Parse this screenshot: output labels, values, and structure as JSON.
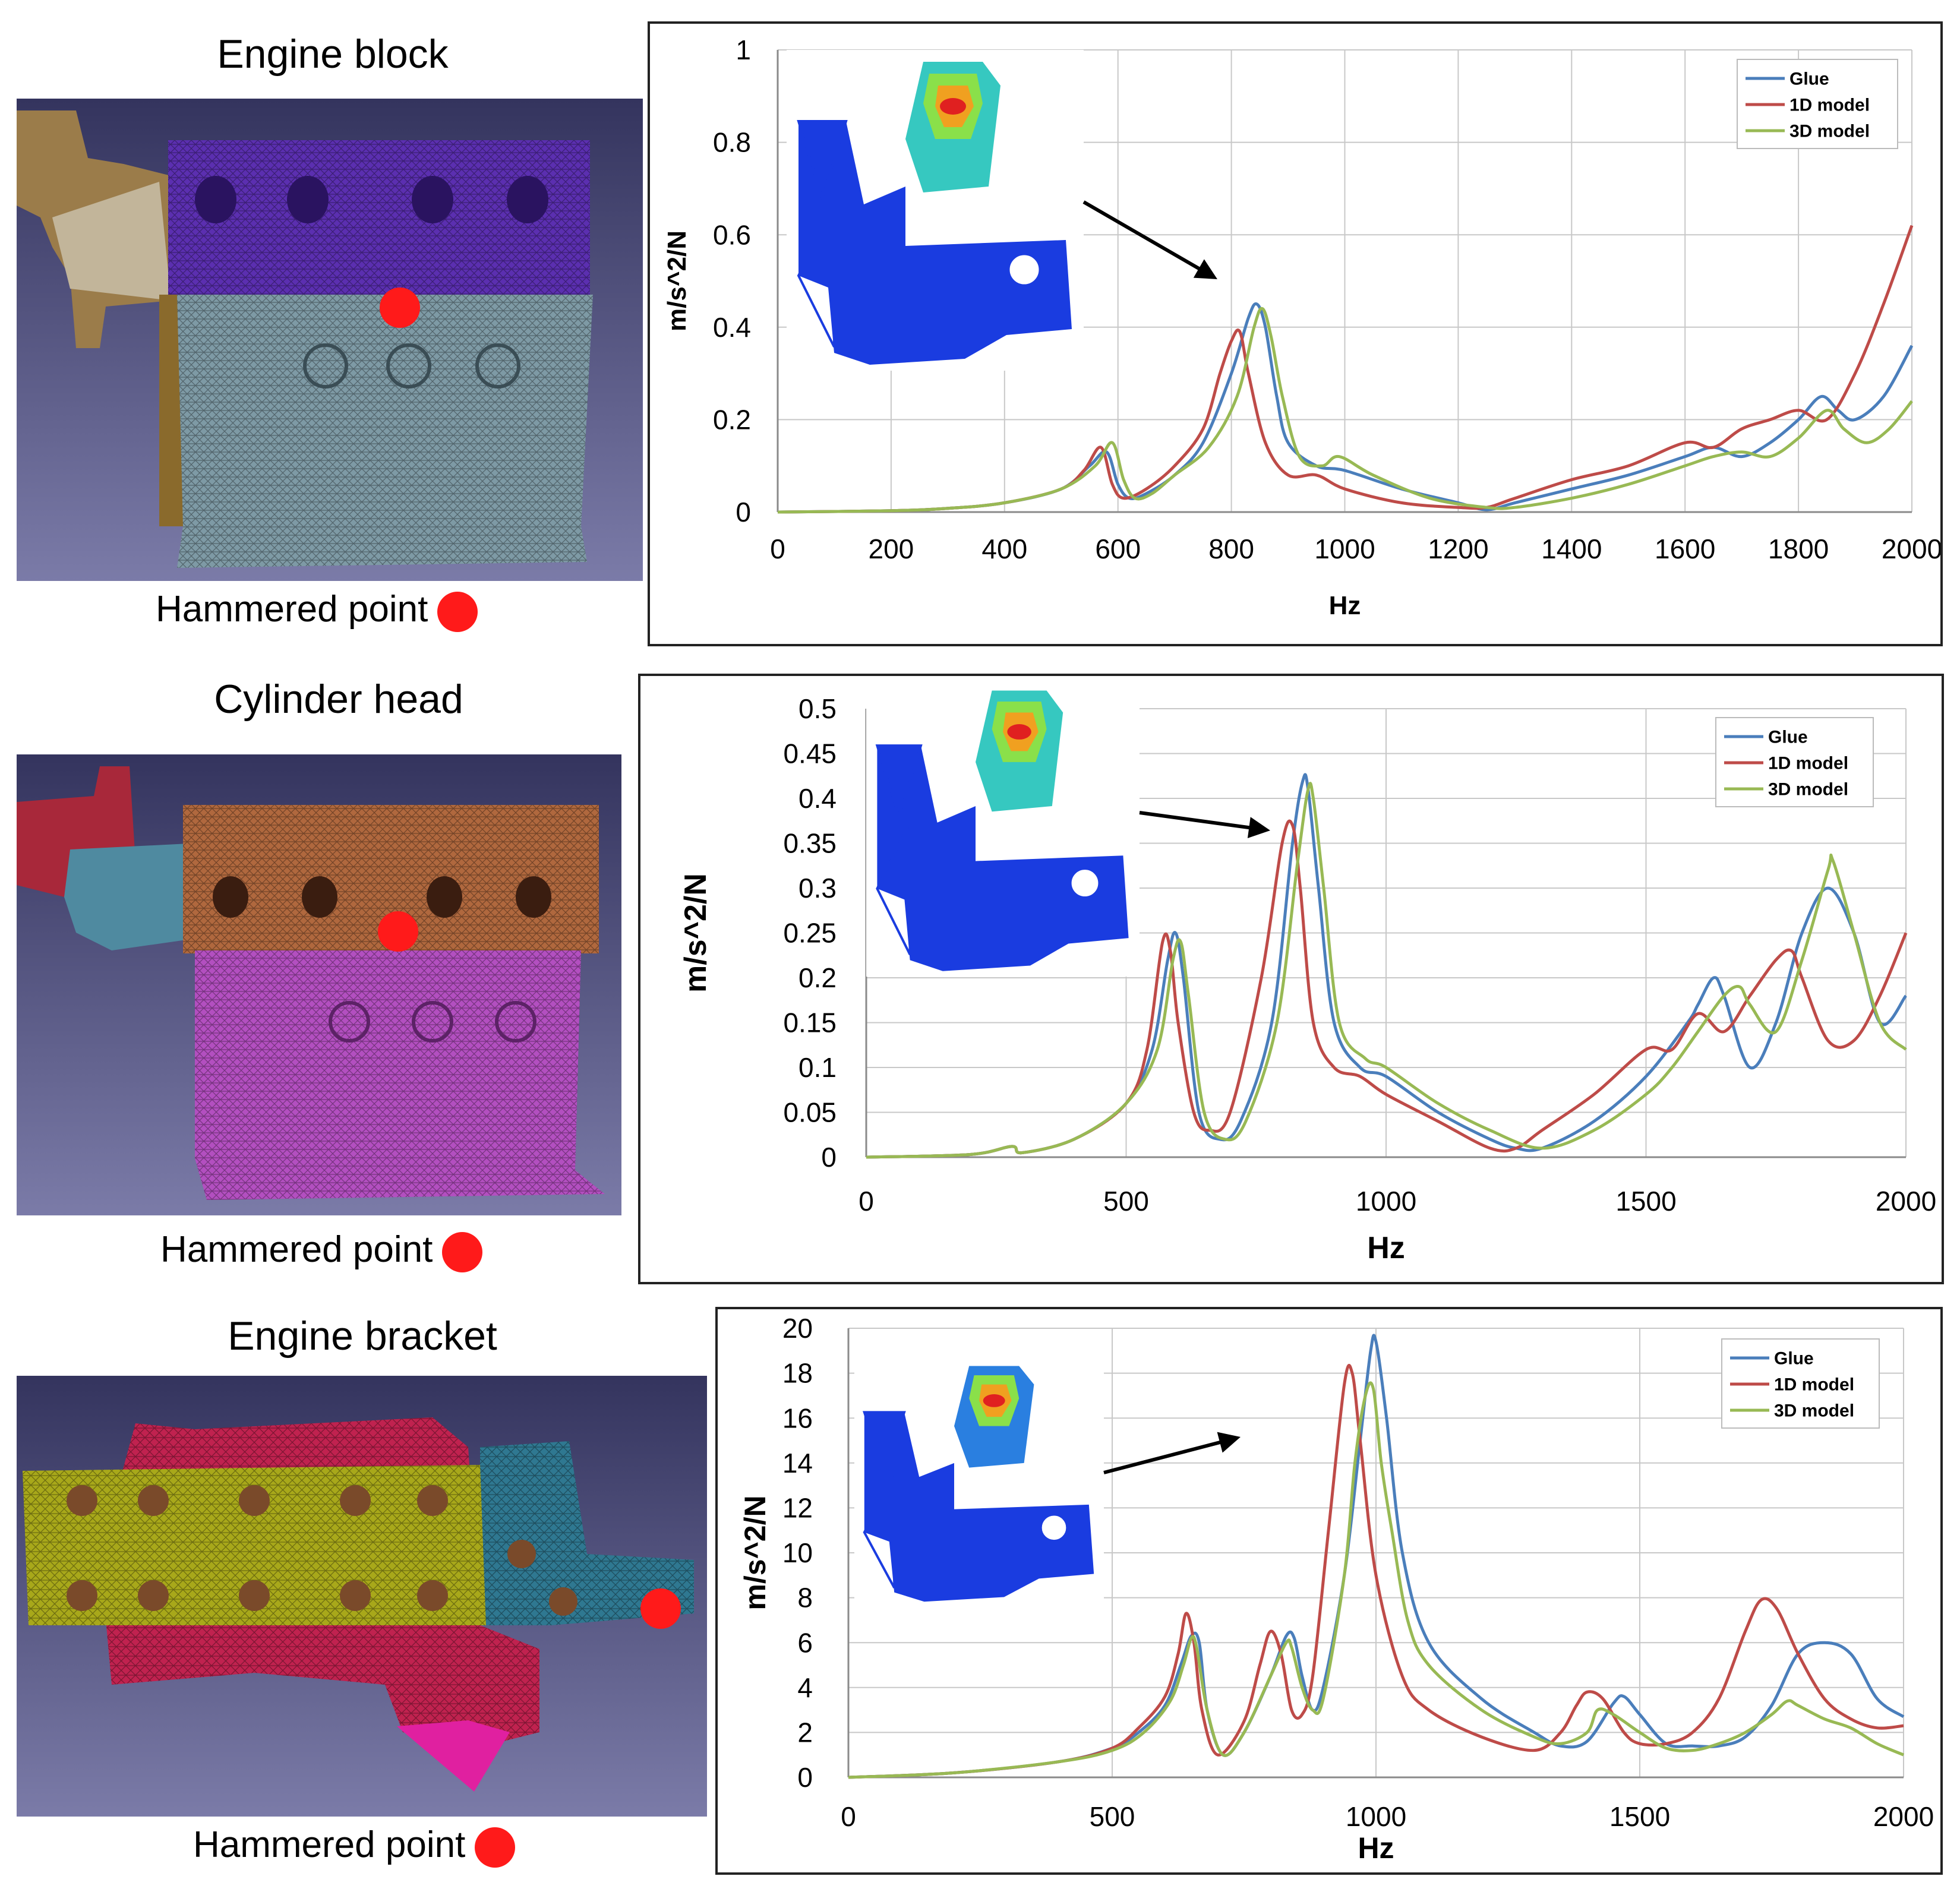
{
  "rows": [
    {
      "title": "Engine block",
      "caption": "Hammered point"
    },
    {
      "title": "Cylinder head",
      "caption": "Hammered point"
    },
    {
      "title": "Engine bracket",
      "caption": "Hammered point"
    }
  ],
  "icons": {
    "hammer_marker": "red-dot-icon",
    "mesh": "fe-mesh-render-icon",
    "mode_shape": "mode-shape-inset-icon"
  },
  "colors": {
    "glue": "#4a7ebb",
    "model_1d": "#be4b48",
    "model_3d": "#98b954",
    "hammer": "#ff1a1a",
    "bg_dark": "#34345e",
    "bg_light": "#7b7ba8"
  },
  "chart_data": [
    {
      "type": "line",
      "title": "",
      "xlabel": "Hz",
      "ylabel": "m/s^2/N",
      "xlim": [
        0,
        2000
      ],
      "ylim": [
        0,
        1
      ],
      "xticks": [
        0,
        200,
        400,
        600,
        800,
        1000,
        1200,
        1400,
        1600,
        1800,
        2000
      ],
      "xtick_labels": [
        "0",
        "200",
        "400",
        "600",
        "800",
        "1000",
        "1200",
        "1400",
        "1600",
        "1800",
        "2000"
      ],
      "yticks": [
        0,
        0.2,
        0.4,
        0.6,
        0.8,
        1
      ],
      "ytick_labels": [
        "0",
        "0.2",
        "0.4",
        "0.6",
        "0.8",
        "1"
      ],
      "legend_position": "top-right",
      "series": [
        {
          "name": "Glue",
          "color": "#4a7ebb",
          "x": [
            0,
            200,
            300,
            400,
            500,
            550,
            580,
            600,
            620,
            650,
            700,
            750,
            800,
            830,
            845,
            860,
            880,
            900,
            950,
            1000,
            1100,
            1200,
            1250,
            1300,
            1400,
            1500,
            1600,
            1650,
            1700,
            1750,
            1800,
            1840,
            1870,
            1900,
            1950,
            2000
          ],
          "y": [
            0,
            0.003,
            0.008,
            0.02,
            0.05,
            0.1,
            0.13,
            0.06,
            0.03,
            0.04,
            0.08,
            0.15,
            0.3,
            0.42,
            0.45,
            0.4,
            0.25,
            0.15,
            0.1,
            0.09,
            0.05,
            0.02,
            0.005,
            0.02,
            0.05,
            0.08,
            0.12,
            0.14,
            0.12,
            0.15,
            0.2,
            0.25,
            0.22,
            0.2,
            0.25,
            0.36
          ]
        },
        {
          "name": "1D model",
          "color": "#be4b48",
          "x": [
            0,
            200,
            300,
            400,
            500,
            540,
            570,
            590,
            610,
            650,
            700,
            750,
            780,
            800,
            815,
            830,
            860,
            900,
            950,
            1000,
            1100,
            1200,
            1250,
            1300,
            1400,
            1500,
            1600,
            1650,
            1700,
            1750,
            1800,
            1850,
            1900,
            1950,
            2000
          ],
          "y": [
            0,
            0.003,
            0.008,
            0.02,
            0.05,
            0.09,
            0.14,
            0.06,
            0.03,
            0.05,
            0.1,
            0.18,
            0.3,
            0.37,
            0.39,
            0.3,
            0.15,
            0.08,
            0.08,
            0.05,
            0.02,
            0.01,
            0.01,
            0.03,
            0.07,
            0.1,
            0.15,
            0.14,
            0.18,
            0.2,
            0.22,
            0.2,
            0.3,
            0.45,
            0.62
          ]
        },
        {
          "name": "3D model",
          "color": "#98b954",
          "x": [
            0,
            200,
            300,
            400,
            500,
            560,
            590,
            610,
            630,
            660,
            700,
            760,
            810,
            840,
            855,
            870,
            890,
            920,
            960,
            990,
            1050,
            1150,
            1250,
            1300,
            1400,
            1500,
            1600,
            1650,
            1700,
            1750,
            1800,
            1850,
            1880,
            1920,
            1960,
            2000
          ],
          "y": [
            0,
            0.003,
            0.008,
            0.02,
            0.05,
            0.1,
            0.15,
            0.07,
            0.03,
            0.04,
            0.08,
            0.14,
            0.25,
            0.4,
            0.44,
            0.38,
            0.25,
            0.12,
            0.1,
            0.12,
            0.08,
            0.03,
            0.01,
            0.01,
            0.03,
            0.06,
            0.1,
            0.12,
            0.13,
            0.12,
            0.16,
            0.22,
            0.18,
            0.15,
            0.18,
            0.24
          ]
        }
      ]
    },
    {
      "type": "line",
      "title": "",
      "xlabel": "Hz",
      "ylabel": "m/s^2/N",
      "xlim": [
        0,
        2000
      ],
      "ylim": [
        0,
        0.5
      ],
      "xticks": [
        0,
        500,
        1000,
        1500,
        2000
      ],
      "xtick_labels": [
        "0",
        "500",
        "1000",
        "1500",
        "2000"
      ],
      "yticks": [
        0,
        0.05,
        0.1,
        0.15,
        0.2,
        0.25,
        0.3,
        0.35,
        0.4,
        0.45,
        0.5
      ],
      "ytick_labels": [
        "0",
        "0.05",
        "0.1",
        "0.15",
        "0.2",
        "0.25",
        "0.3",
        "0.35",
        "0.4",
        "0.45",
        "0.5"
      ],
      "legend_position": "top-right",
      "series": [
        {
          "name": "Glue",
          "color": "#4a7ebb",
          "x": [
            0,
            200,
            280,
            300,
            400,
            500,
            550,
            580,
            595,
            610,
            640,
            680,
            720,
            780,
            820,
            840,
            850,
            870,
            900,
            950,
            1000,
            1100,
            1200,
            1250,
            1300,
            1400,
            1500,
            1580,
            1600,
            1630,
            1650,
            1700,
            1750,
            1800,
            1850,
            1900,
            1950,
            2000
          ],
          "y": [
            0,
            0.003,
            0.012,
            0.005,
            0.02,
            0.06,
            0.12,
            0.22,
            0.25,
            0.2,
            0.05,
            0.02,
            0.04,
            0.15,
            0.35,
            0.42,
            0.41,
            0.3,
            0.15,
            0.1,
            0.09,
            0.05,
            0.02,
            0.01,
            0.01,
            0.04,
            0.09,
            0.15,
            0.17,
            0.2,
            0.18,
            0.1,
            0.15,
            0.25,
            0.3,
            0.25,
            0.15,
            0.18
          ]
        },
        {
          "name": "1D model",
          "color": "#be4b48",
          "x": [
            0,
            200,
            280,
            300,
            400,
            500,
            540,
            570,
            585,
            600,
            630,
            660,
            700,
            760,
            800,
            820,
            835,
            860,
            900,
            950,
            1000,
            1100,
            1200,
            1250,
            1300,
            1400,
            1500,
            1550,
            1600,
            1650,
            1700,
            1750,
            1780,
            1800,
            1850,
            1900,
            1950,
            2000
          ],
          "y": [
            0,
            0.003,
            0.012,
            0.005,
            0.02,
            0.06,
            0.12,
            0.24,
            0.23,
            0.15,
            0.05,
            0.03,
            0.05,
            0.2,
            0.35,
            0.37,
            0.3,
            0.15,
            0.1,
            0.09,
            0.07,
            0.04,
            0.01,
            0.01,
            0.03,
            0.07,
            0.12,
            0.12,
            0.16,
            0.14,
            0.18,
            0.22,
            0.23,
            0.2,
            0.13,
            0.13,
            0.18,
            0.25
          ]
        },
        {
          "name": "3D model",
          "color": "#98b954",
          "x": [
            0,
            200,
            280,
            300,
            400,
            500,
            560,
            590,
            605,
            620,
            650,
            690,
            730,
            790,
            830,
            850,
            860,
            880,
            910,
            960,
            1000,
            1100,
            1200,
            1300,
            1400,
            1500,
            1550,
            1600,
            1650,
            1680,
            1700,
            1750,
            1800,
            1850,
            1860,
            1900,
            1950,
            2000
          ],
          "y": [
            0,
            0.003,
            0.012,
            0.005,
            0.02,
            0.06,
            0.12,
            0.22,
            0.24,
            0.18,
            0.05,
            0.02,
            0.04,
            0.15,
            0.33,
            0.41,
            0.4,
            0.3,
            0.15,
            0.11,
            0.1,
            0.06,
            0.03,
            0.01,
            0.03,
            0.07,
            0.1,
            0.14,
            0.18,
            0.19,
            0.17,
            0.14,
            0.22,
            0.32,
            0.33,
            0.25,
            0.15,
            0.12
          ]
        }
      ]
    },
    {
      "type": "line",
      "title": "",
      "xlabel": "Hz",
      "ylabel": "m/s^2/N",
      "xlim": [
        0,
        2000
      ],
      "ylim": [
        0,
        20
      ],
      "xticks": [
        0,
        500,
        1000,
        1500,
        2000
      ],
      "xtick_labels": [
        "0",
        "500",
        "1000",
        "1500",
        "2000"
      ],
      "yticks": [
        0,
        2,
        4,
        6,
        8,
        10,
        12,
        14,
        16,
        18,
        20
      ],
      "ytick_labels": [
        "0",
        "2",
        "4",
        "6",
        "8",
        "10",
        "12",
        "14",
        "16",
        "18",
        "20"
      ],
      "legend_position": "top-right",
      "series": [
        {
          "name": "Glue",
          "color": "#4a7ebb",
          "x": [
            0,
            200,
            400,
            500,
            550,
            600,
            630,
            650,
            665,
            680,
            710,
            750,
            800,
            830,
            845,
            860,
            880,
            900,
            940,
            970,
            990,
            1000,
            1020,
            1050,
            1100,
            1200,
            1300,
            1350,
            1400,
            1450,
            1470,
            1500,
            1550,
            1600,
            1650,
            1700,
            1750,
            1800,
            1850,
            1900,
            1950,
            2000
          ],
          "y": [
            0,
            0.2,
            0.7,
            1.3,
            2.0,
            3.2,
            5.0,
            6.3,
            6.0,
            3.0,
            1.0,
            2.0,
            4.5,
            6.3,
            6.2,
            4.5,
            3.0,
            4.0,
            9.0,
            15.0,
            19.0,
            19.4,
            16.0,
            10.0,
            6.0,
            3.5,
            2.0,
            1.4,
            1.6,
            3.3,
            3.6,
            2.8,
            1.5,
            1.4,
            1.4,
            1.8,
            3.2,
            5.5,
            6.0,
            5.5,
            3.5,
            2.7
          ]
        },
        {
          "name": "1D model",
          "color": "#be4b48",
          "x": [
            0,
            200,
            400,
            500,
            550,
            600,
            625,
            640,
            655,
            670,
            700,
            750,
            780,
            800,
            820,
            840,
            860,
            880,
            910,
            940,
            955,
            970,
            1000,
            1050,
            1100,
            1200,
            1300,
            1350,
            1380,
            1400,
            1430,
            1470,
            1500,
            1550,
            1600,
            1650,
            1700,
            1730,
            1760,
            1800,
            1850,
            1900,
            1950,
            2000
          ],
          "y": [
            0,
            0.2,
            0.7,
            1.3,
            2.2,
            3.6,
            5.5,
            7.3,
            6.0,
            3.0,
            1.0,
            2.5,
            5.0,
            6.5,
            5.5,
            3.0,
            2.8,
            4.5,
            11.0,
            17.5,
            18.0,
            15.0,
            9.0,
            4.5,
            3.0,
            1.8,
            1.2,
            2.0,
            3.2,
            3.8,
            3.5,
            2.0,
            1.5,
            1.5,
            2.0,
            3.5,
            6.5,
            7.9,
            7.5,
            5.5,
            3.5,
            2.6,
            2.2,
            2.3
          ]
        },
        {
          "name": "3D model",
          "color": "#98b954",
          "x": [
            0,
            200,
            400,
            500,
            560,
            610,
            635,
            650,
            660,
            680,
            710,
            750,
            800,
            830,
            840,
            860,
            880,
            900,
            940,
            960,
            980,
            995,
            1010,
            1030,
            1060,
            1100,
            1200,
            1300,
            1350,
            1400,
            1420,
            1450,
            1500,
            1550,
            1600,
            1650,
            1700,
            1750,
            1780,
            1800,
            1850,
            1900,
            1950,
            2000
          ],
          "y": [
            0,
            0.2,
            0.7,
            1.2,
            2.0,
            3.4,
            5.0,
            6.2,
            5.8,
            3.0,
            1.0,
            2.0,
            4.5,
            6.0,
            5.8,
            4.0,
            3.0,
            3.5,
            9.0,
            14.0,
            17.0,
            17.3,
            14.0,
            11.0,
            7.0,
            5.0,
            3.0,
            1.8,
            1.5,
            2.0,
            3.0,
            2.8,
            2.0,
            1.3,
            1.2,
            1.5,
            2.0,
            2.8,
            3.4,
            3.2,
            2.6,
            2.2,
            1.5,
            1.0
          ]
        }
      ]
    }
  ]
}
